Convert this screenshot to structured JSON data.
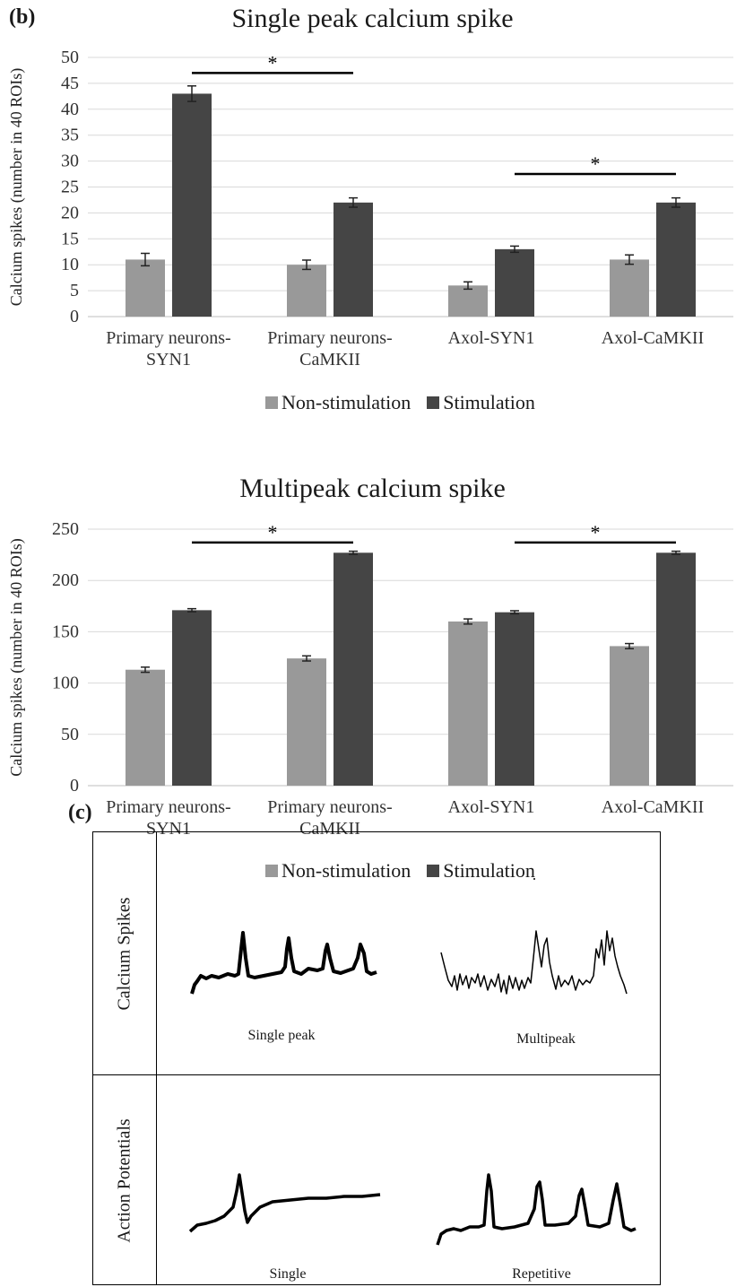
{
  "panel_b_label": "(b)",
  "panel_c_label": "(c)",
  "legend": {
    "non_stim": "Non-stimulation",
    "stim": "Stimulation",
    "non_stim_color": "#999999",
    "stim_color": "#454545"
  },
  "chart_data": [
    {
      "type": "bar",
      "title": "Single peak calcium spike",
      "ylabel": "Calcium spikes (number in 40 ROIs)",
      "ylim": [
        0,
        50
      ],
      "yticks": [
        "0",
        "5",
        "10",
        "15",
        "20",
        "25",
        "30",
        "35",
        "40",
        "45",
        "50"
      ],
      "categories": [
        [
          "Primary neurons-",
          "SYN1"
        ],
        [
          "Primary neurons-",
          "CaMKII"
        ],
        [
          "Axol-SYN1"
        ],
        [
          "Axol-CaMKII"
        ]
      ],
      "series": [
        {
          "name": "Non-stimulation",
          "values": [
            11,
            10,
            6,
            11
          ],
          "errors": [
            1.2,
            0.9,
            0.7,
            0.9
          ]
        },
        {
          "name": "Stimulation",
          "values": [
            43,
            22,
            13,
            22
          ],
          "errors": [
            1.5,
            0.9,
            0.6,
            0.9
          ]
        }
      ],
      "significance": [
        {
          "from_category": 0,
          "to_category": 1,
          "y": 47,
          "label": "*"
        },
        {
          "from_category": 2,
          "to_category": 3,
          "y": 27.5,
          "label": "*"
        }
      ]
    },
    {
      "type": "bar",
      "title": "Multipeak calcium spike",
      "ylabel": "Calcium spikes (number in 40 ROIs)",
      "ylim": [
        0,
        250
      ],
      "yticks": [
        "0",
        "50",
        "100",
        "150",
        "200",
        "250"
      ],
      "categories": [
        [
          "Primary neurons-",
          "SYN1"
        ],
        [
          "Primary neurons-",
          "CaMKII"
        ],
        [
          "Axol-SYN1"
        ],
        [
          "Axol-CaMKII"
        ]
      ],
      "series": [
        {
          "name": "Non-stimulation",
          "values": [
            113,
            124,
            160,
            136
          ],
          "errors": [
            2.5,
            2.5,
            2.5,
            2.5
          ]
        },
        {
          "name": "Stimulation",
          "values": [
            171,
            227,
            169,
            227
          ],
          "errors": [
            1.5,
            1.5,
            1.5,
            1.5
          ]
        }
      ],
      "significance": [
        {
          "from_category": 0,
          "to_category": 1,
          "y": 237,
          "label": "*"
        },
        {
          "from_category": 2,
          "to_category": 3,
          "y": 237,
          "label": "*"
        }
      ]
    }
  ],
  "panel_c": {
    "row1_label": "Calcium Spikes",
    "row2_label": "Action Potentials",
    "captions": {
      "single_peak": "Single peak",
      "multipeak": "Multipeak",
      "single": "Single",
      "repetitive": "Repetitive"
    }
  }
}
